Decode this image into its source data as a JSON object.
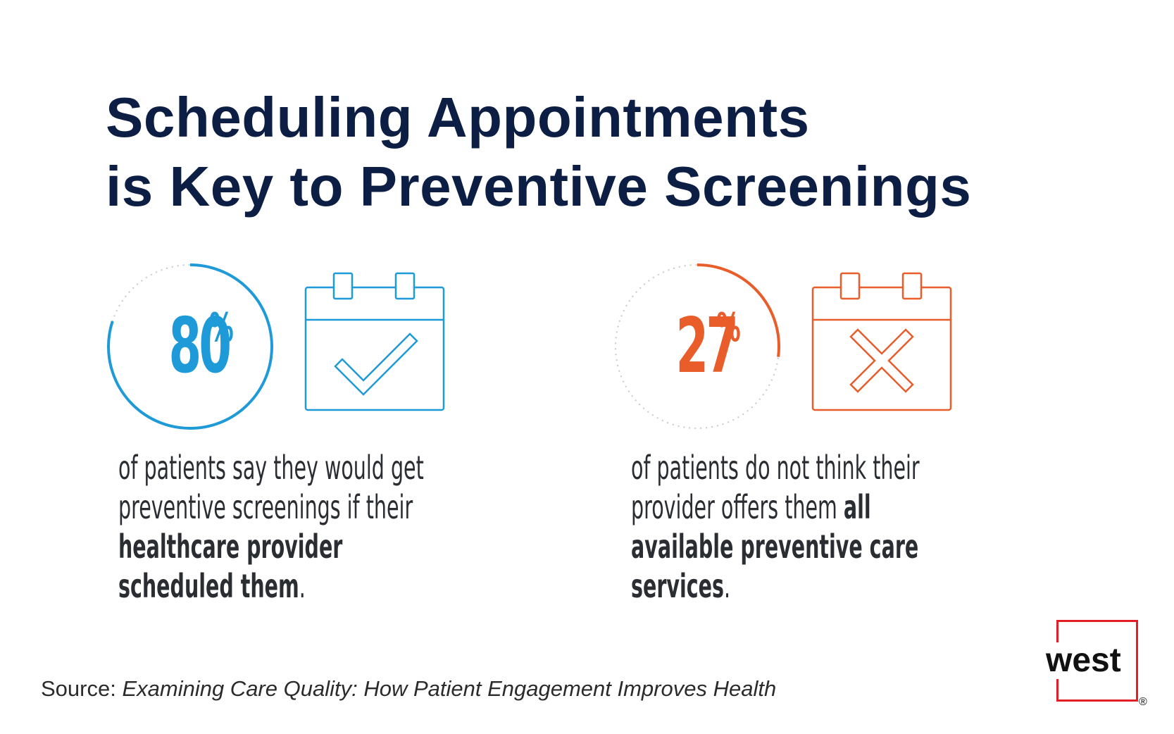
{
  "title": {
    "line1": "Scheduling Appointments",
    "line2": "is Key to Preventive Screenings"
  },
  "stats": [
    {
      "value": "80",
      "percent_sign": "%",
      "fraction": 0.8,
      "color": "#1f9ad9",
      "icon": "calendar-check-icon",
      "text": {
        "part1": "of patients say they would get preventive screenings if their ",
        "bold": "healthcare provider scheduled them",
        "part2": "."
      }
    },
    {
      "value": "27",
      "percent_sign": "%",
      "fraction": 0.27,
      "color": "#e85d2a",
      "icon": "calendar-x-icon",
      "text": {
        "part1": "of patients do not think their provider offers them ",
        "bold": "all available preventive care services",
        "part2": "."
      }
    }
  ],
  "source": {
    "label": "Source: ",
    "title": "Examining Care Quality: How Patient Engagement Improves Health"
  },
  "logo": {
    "text": "west",
    "registered": "®",
    "color": "#e21f26"
  }
}
